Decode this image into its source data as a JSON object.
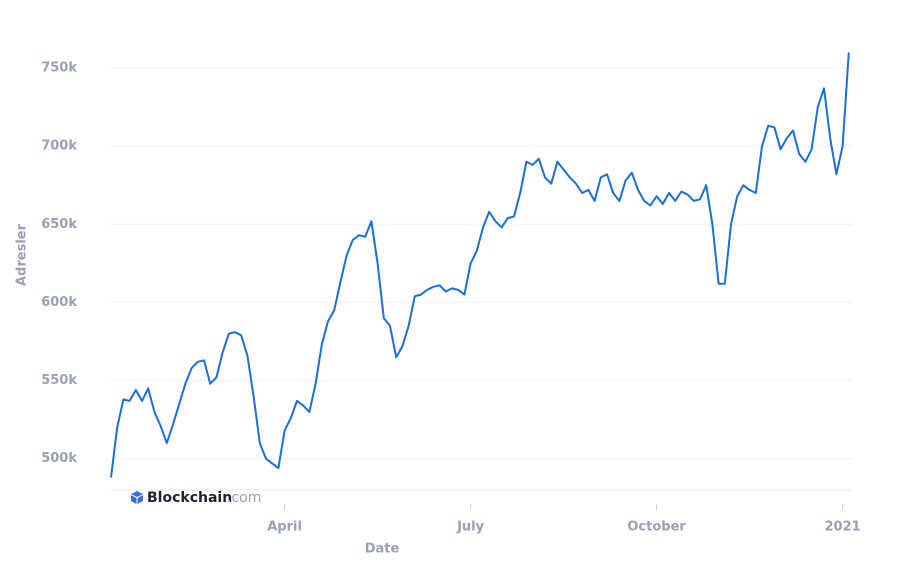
{
  "chart_data": {
    "type": "line",
    "y_label": "Adresler",
    "x_label": "Date",
    "watermark": {
      "brand": "Blockchain",
      "suffix": ".com"
    },
    "color": "#1a6fd8",
    "grid": true,
    "ylim": [
      480000,
      782000
    ],
    "yticks": [
      {
        "value": 500000,
        "label": "500k"
      },
      {
        "value": 550000,
        "label": "550k"
      },
      {
        "value": 600000,
        "label": "600k"
      },
      {
        "value": 650000,
        "label": "650k"
      },
      {
        "value": 700000,
        "label": "700k"
      },
      {
        "value": 750000,
        "label": "750k"
      }
    ],
    "categories": [
      null,
      null,
      null,
      null,
      null,
      null,
      null,
      null,
      null,
      null,
      null,
      null,
      null,
      null,
      null,
      null,
      null,
      null,
      null,
      null,
      null,
      null,
      null,
      null,
      null,
      null,
      null,
      null,
      "April",
      null,
      null,
      null,
      null,
      null,
      null,
      null,
      null,
      null,
      null,
      null,
      null,
      null,
      null,
      null,
      null,
      null,
      null,
      null,
      null,
      null,
      null,
      null,
      null,
      null,
      null,
      null,
      null,
      null,
      "July",
      null,
      null,
      null,
      null,
      null,
      null,
      null,
      null,
      null,
      null,
      null,
      null,
      null,
      null,
      null,
      null,
      null,
      null,
      null,
      null,
      null,
      null,
      null,
      null,
      null,
      null,
      null,
      null,
      null,
      "October",
      null,
      null,
      null,
      null,
      null,
      null,
      null,
      null,
      null,
      null,
      null,
      null,
      null,
      null,
      null,
      null,
      null,
      null,
      null,
      null,
      null,
      null,
      null,
      null,
      null,
      null,
      null,
      null,
      null,
      "2021",
      null
    ],
    "values": [
      488000,
      520000,
      538000,
      537000,
      544000,
      537000,
      545000,
      530000,
      521000,
      510000,
      522000,
      535000,
      548000,
      558000,
      562000,
      563000,
      548000,
      552000,
      568000,
      580000,
      581000,
      579000,
      566000,
      540000,
      510000,
      500000,
      497000,
      494000,
      518000,
      526000,
      537000,
      534000,
      530000,
      548000,
      573000,
      588000,
      595000,
      613000,
      630000,
      640000,
      643000,
      642000,
      652000,
      625000,
      590000,
      585000,
      565000,
      572000,
      585000,
      604000,
      605000,
      608000,
      610000,
      611000,
      607000,
      609000,
      608000,
      605000,
      625000,
      633000,
      648000,
      658000,
      652000,
      648000,
      654000,
      655000,
      670000,
      690000,
      688000,
      692000,
      680000,
      676000,
      690000,
      685000,
      680000,
      676000,
      670000,
      672000,
      665000,
      680000,
      682000,
      670000,
      665000,
      678000,
      683000,
      672000,
      665000,
      662000,
      668000,
      663000,
      670000,
      665000,
      671000,
      669000,
      665000,
      666000,
      675000,
      650000,
      612000,
      612000,
      650000,
      668000,
      675000,
      672000,
      670000,
      700000,
      713000,
      712000,
      698000,
      705000,
      710000,
      695000,
      690000,
      698000,
      725000,
      737000,
      705000,
      682000,
      700000,
      760000
    ]
  }
}
